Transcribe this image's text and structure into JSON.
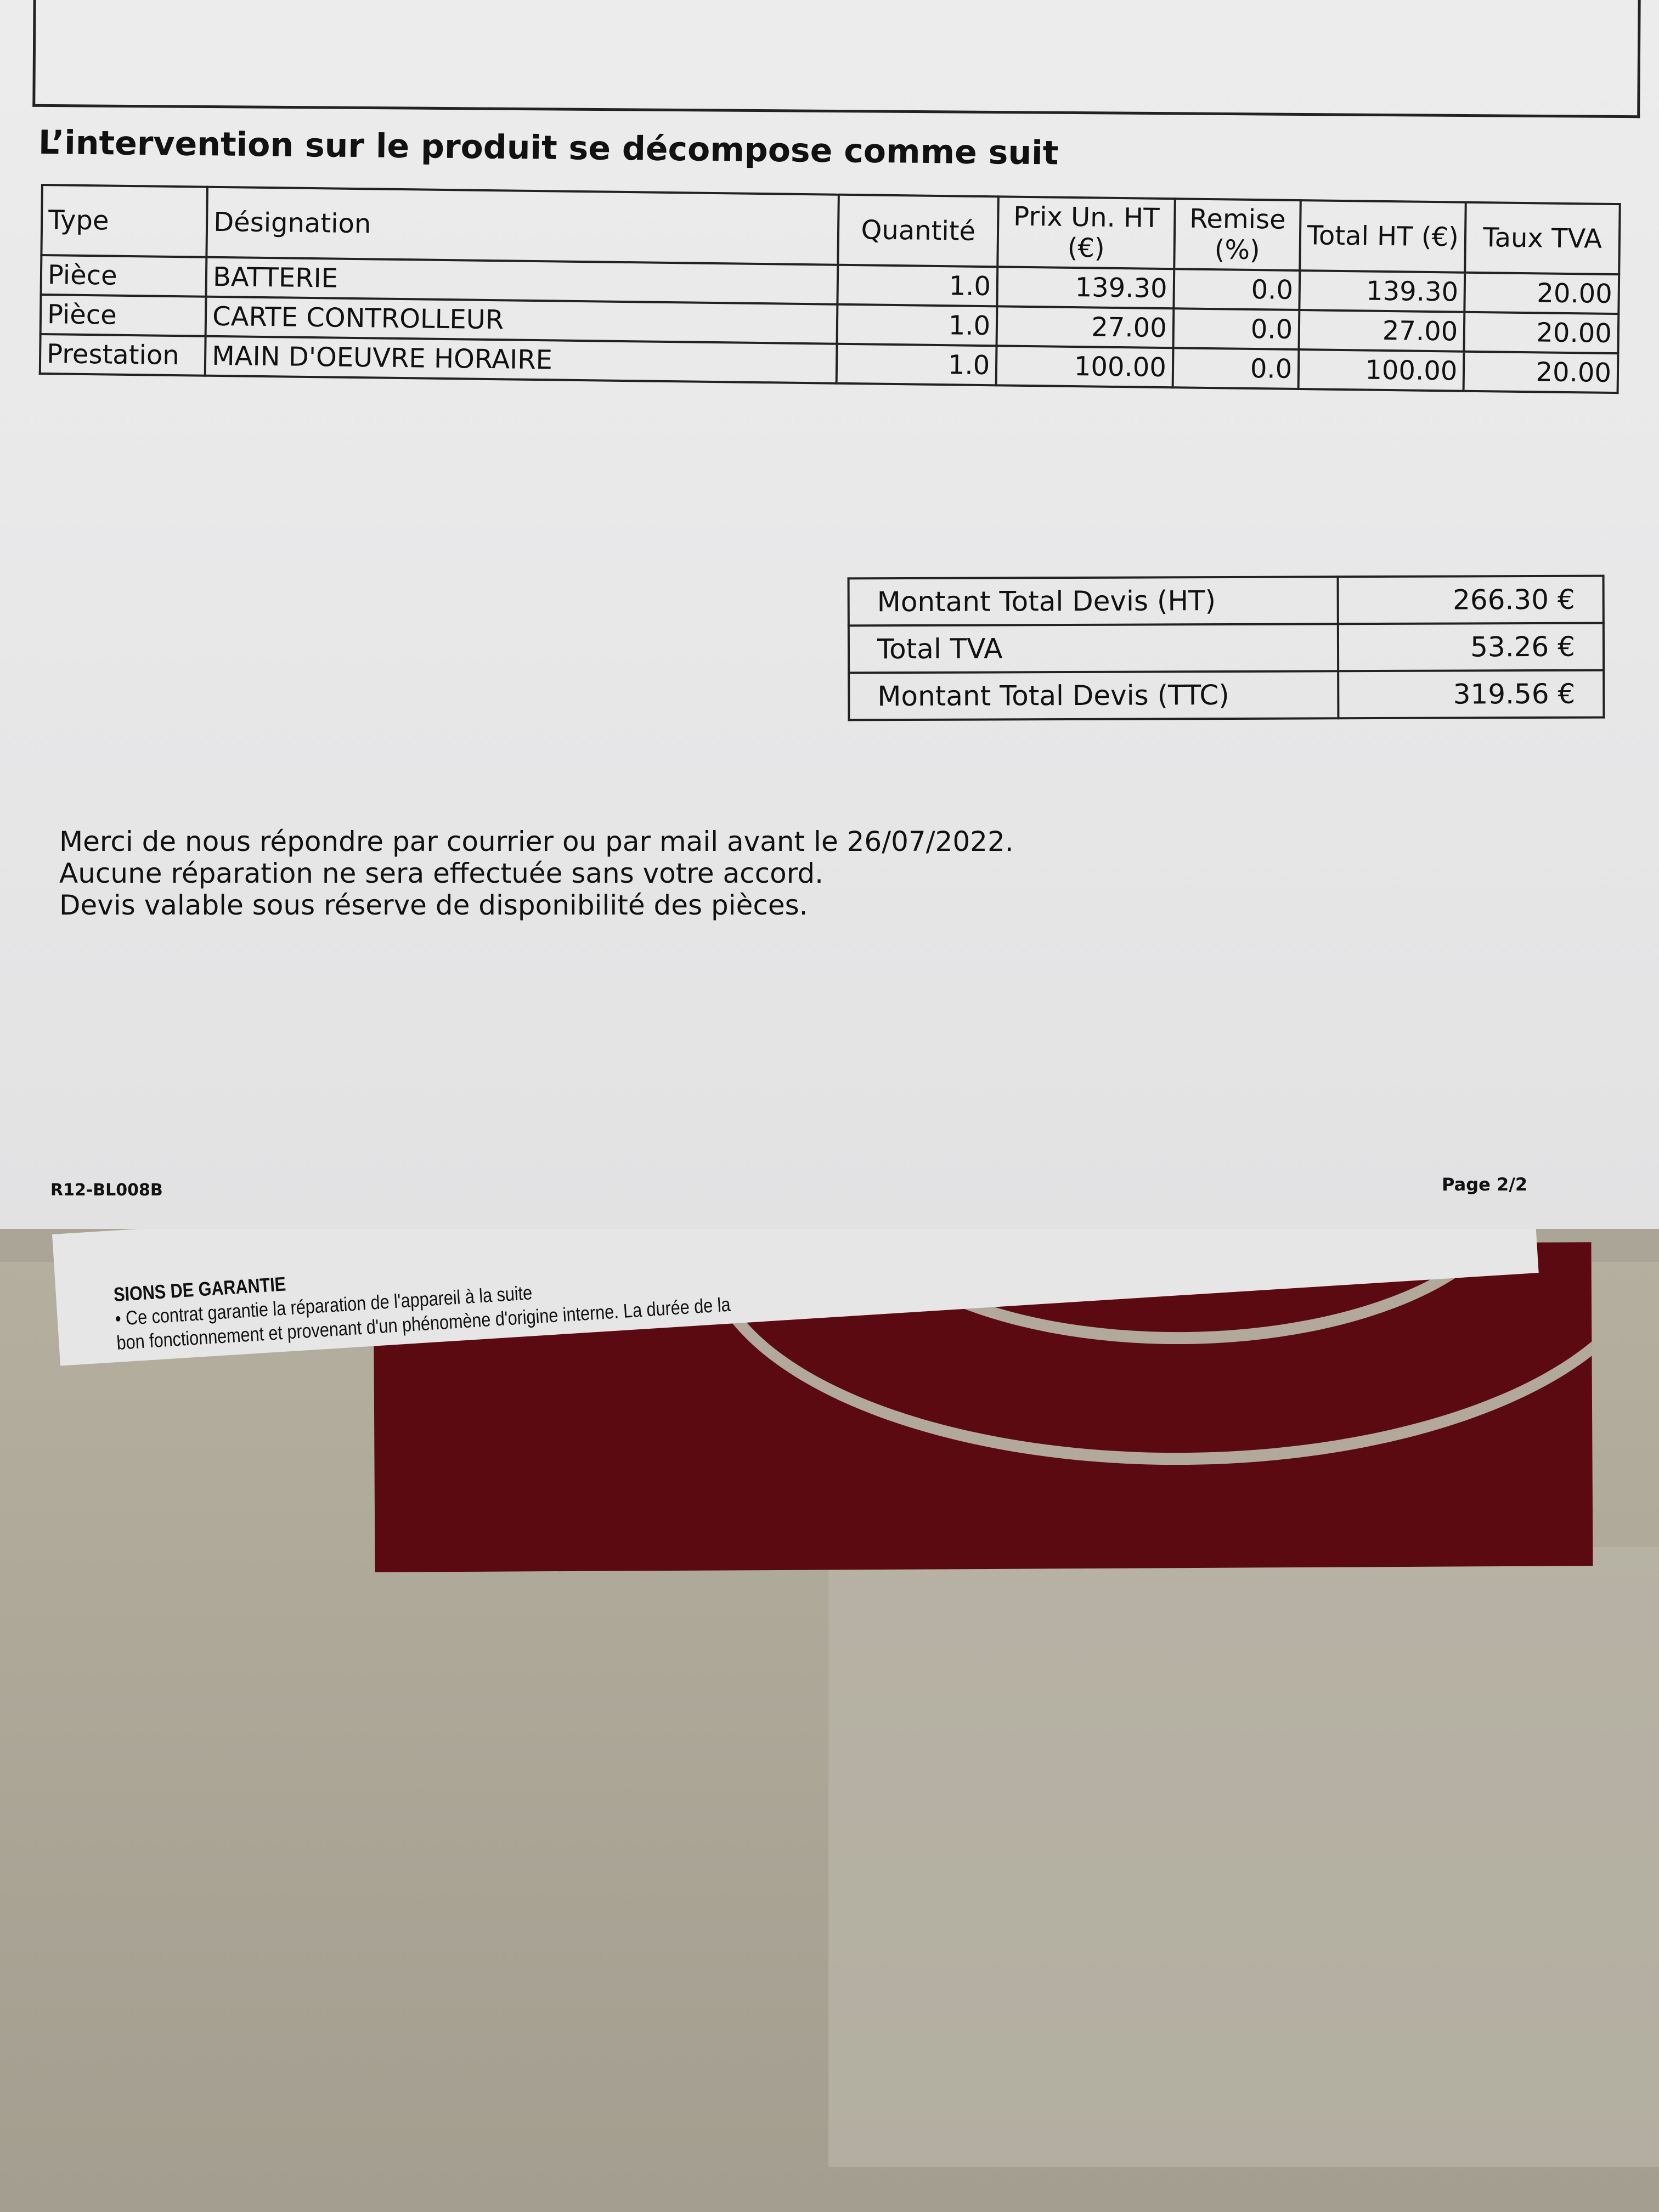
{
  "heading": "L’intervention sur le produit se décompose comme suit",
  "items_table": {
    "headers": [
      "Type",
      "Désignation",
      "Quantité",
      "Prix Un. HT (€)",
      "Remise (%)",
      "Total HT (€)",
      "Taux TVA"
    ],
    "rows": [
      [
        "Pièce",
        "BATTERIE",
        "1.0",
        "139.30",
        "0.0",
        "139.30",
        "20.00"
      ],
      [
        "Pièce",
        "CARTE CONTROLLEUR",
        "1.0",
        "27.00",
        "0.0",
        "27.00",
        "20.00"
      ],
      [
        "Prestation",
        "MAIN D'OEUVRE HORAIRE",
        "1.0",
        "100.00",
        "0.0",
        "100.00",
        "20.00"
      ]
    ]
  },
  "totals": [
    {
      "label": "Montant Total Devis (HT)",
      "value": "266.30 €"
    },
    {
      "label": "Total TVA",
      "value": "53.26 €"
    },
    {
      "label": "Montant Total Devis (TTC)",
      "value": "319.56 €"
    }
  ],
  "message": [
    "Merci de nous répondre par courrier ou par mail avant le 26/07/2022.",
    "Aucune réparation ne sera effectuée sans votre accord.",
    "Devis valable sous réserve de disponibilité des pièces."
  ],
  "footer": {
    "reference": "R12-BL008B",
    "page": "Page 2/2"
  },
  "underlying_sheet": {
    "heading": "SIONS DE GARANTIE",
    "lines": [
      "• Ce contrat garantie la réparation de l'appareil à la suite",
      "bon fonctionnement et provenant d'un phénomène d'origine interne. La durée de la"
    ]
  },
  "colors": {
    "paper": "#e9e9ea",
    "ink": "#111111",
    "red_folder": "#5a0a10",
    "background": "#aaa596"
  }
}
